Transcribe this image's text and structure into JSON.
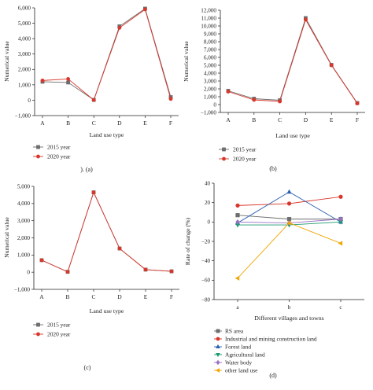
{
  "colors": {
    "gray": "#6d6d6d",
    "red": "#d9362b",
    "blue": "#2a5fb0",
    "green": "#1b9a6e",
    "purple": "#9b6fc3",
    "orange": "#f2a600",
    "axis": "#222222"
  },
  "chart_data": [
    {
      "panel_label": "). (a)",
      "type": "line",
      "xlabel": "Land use type",
      "ylabel": "Numerical value",
      "categories": [
        "A",
        "B",
        "C",
        "D",
        "E",
        "F"
      ],
      "ylim": [
        -1000,
        6000
      ],
      "yticks": [
        -1000,
        0,
        1000,
        2000,
        3000,
        4000,
        5000,
        6000
      ],
      "ytick_labels": [
        "−1,000",
        "0",
        "1,000",
        "2,000",
        "3,000",
        "4,000",
        "5,000",
        "6,000"
      ],
      "series": [
        {
          "name": "2015 year",
          "color": "gray",
          "marker": "square",
          "values": [
            1200,
            1150,
            20,
            4800,
            5950,
            200
          ]
        },
        {
          "name": "2020 year",
          "color": "red",
          "marker": "circle",
          "values": [
            1280,
            1380,
            10,
            4700,
            5900,
            80
          ]
        }
      ],
      "legend": "below"
    },
    {
      "panel_label": "(b)",
      "type": "line",
      "xlabel": "Land use type",
      "ylabel": "Numerical value",
      "categories": [
        "A",
        "B",
        "C",
        "D",
        "E",
        "F"
      ],
      "ylim": [
        -1000,
        12000
      ],
      "yticks": [
        -1000,
        0,
        1000,
        2000,
        3000,
        4000,
        5000,
        6000,
        7000,
        8000,
        9000,
        10000,
        11000,
        12000
      ],
      "ytick_labels": [
        "−1,000",
        "0",
        "1,000",
        "2,000",
        "3,000",
        "4,000",
        "5,000",
        "6,000",
        "7,000",
        "8,000",
        "9,000",
        "10,000",
        "11,000",
        "12,000"
      ],
      "series": [
        {
          "name": "2015 year",
          "color": "gray",
          "marker": "square",
          "values": [
            1750,
            750,
            550,
            11000,
            5050,
            200
          ]
        },
        {
          "name": "2020 year",
          "color": "red",
          "marker": "circle",
          "values": [
            1650,
            600,
            400,
            10800,
            5000,
            150
          ]
        }
      ],
      "legend": "below"
    },
    {
      "panel_label": "(c)",
      "type": "line",
      "xlabel": "Land use type",
      "ylabel": "Numerical value",
      "categories": [
        "A",
        "B",
        "C",
        "D",
        "E",
        "F"
      ],
      "ylim": [
        -1000,
        5000
      ],
      "yticks": [
        -1000,
        0,
        1000,
        2000,
        3000,
        4000,
        5000
      ],
      "ytick_labels": [
        "−1,000",
        "0",
        "1,000",
        "2,000",
        "3,000",
        "4,000",
        "5,000"
      ],
      "series": [
        {
          "name": "2015 year",
          "color": "gray",
          "marker": "square",
          "values": [
            700,
            20,
            4650,
            1380,
            150,
            50
          ]
        },
        {
          "name": "2020 year",
          "color": "red",
          "marker": "circle",
          "values": [
            700,
            20,
            4650,
            1380,
            150,
            50
          ]
        }
      ],
      "legend": "below"
    },
    {
      "panel_label": "(d)",
      "type": "line",
      "xlabel": "Different villages and towns",
      "ylabel": "Rate of change (%)",
      "categories": [
        "a",
        "b",
        "c"
      ],
      "ylim": [
        -80,
        40
      ],
      "yticks": [
        -80,
        -60,
        -40,
        -20,
        0,
        20,
        40
      ],
      "ytick_labels": [
        "−80",
        "−60",
        "−40",
        "−20",
        "0",
        "20",
        "40"
      ],
      "series": [
        {
          "name": "RS area",
          "color": "gray",
          "marker": "square",
          "values": [
            7,
            3,
            3
          ]
        },
        {
          "name": "Industrial and mining construction land",
          "color": "red",
          "marker": "circle",
          "values": [
            17,
            19,
            26
          ]
        },
        {
          "name": "Forest land",
          "color": "blue",
          "marker": "triangle-up",
          "values": [
            -1,
            31,
            0
          ]
        },
        {
          "name": "Agricultural land",
          "color": "green",
          "marker": "triangle-down",
          "values": [
            -3,
            -3,
            0
          ]
        },
        {
          "name": "Water body",
          "color": "purple",
          "marker": "diamond",
          "values": [
            0,
            -1,
            3
          ]
        },
        {
          "name": "other land use",
          "color": "orange",
          "marker": "triangle-left",
          "values": [
            -58,
            -1,
            -22
          ]
        }
      ],
      "legend": "below"
    }
  ]
}
